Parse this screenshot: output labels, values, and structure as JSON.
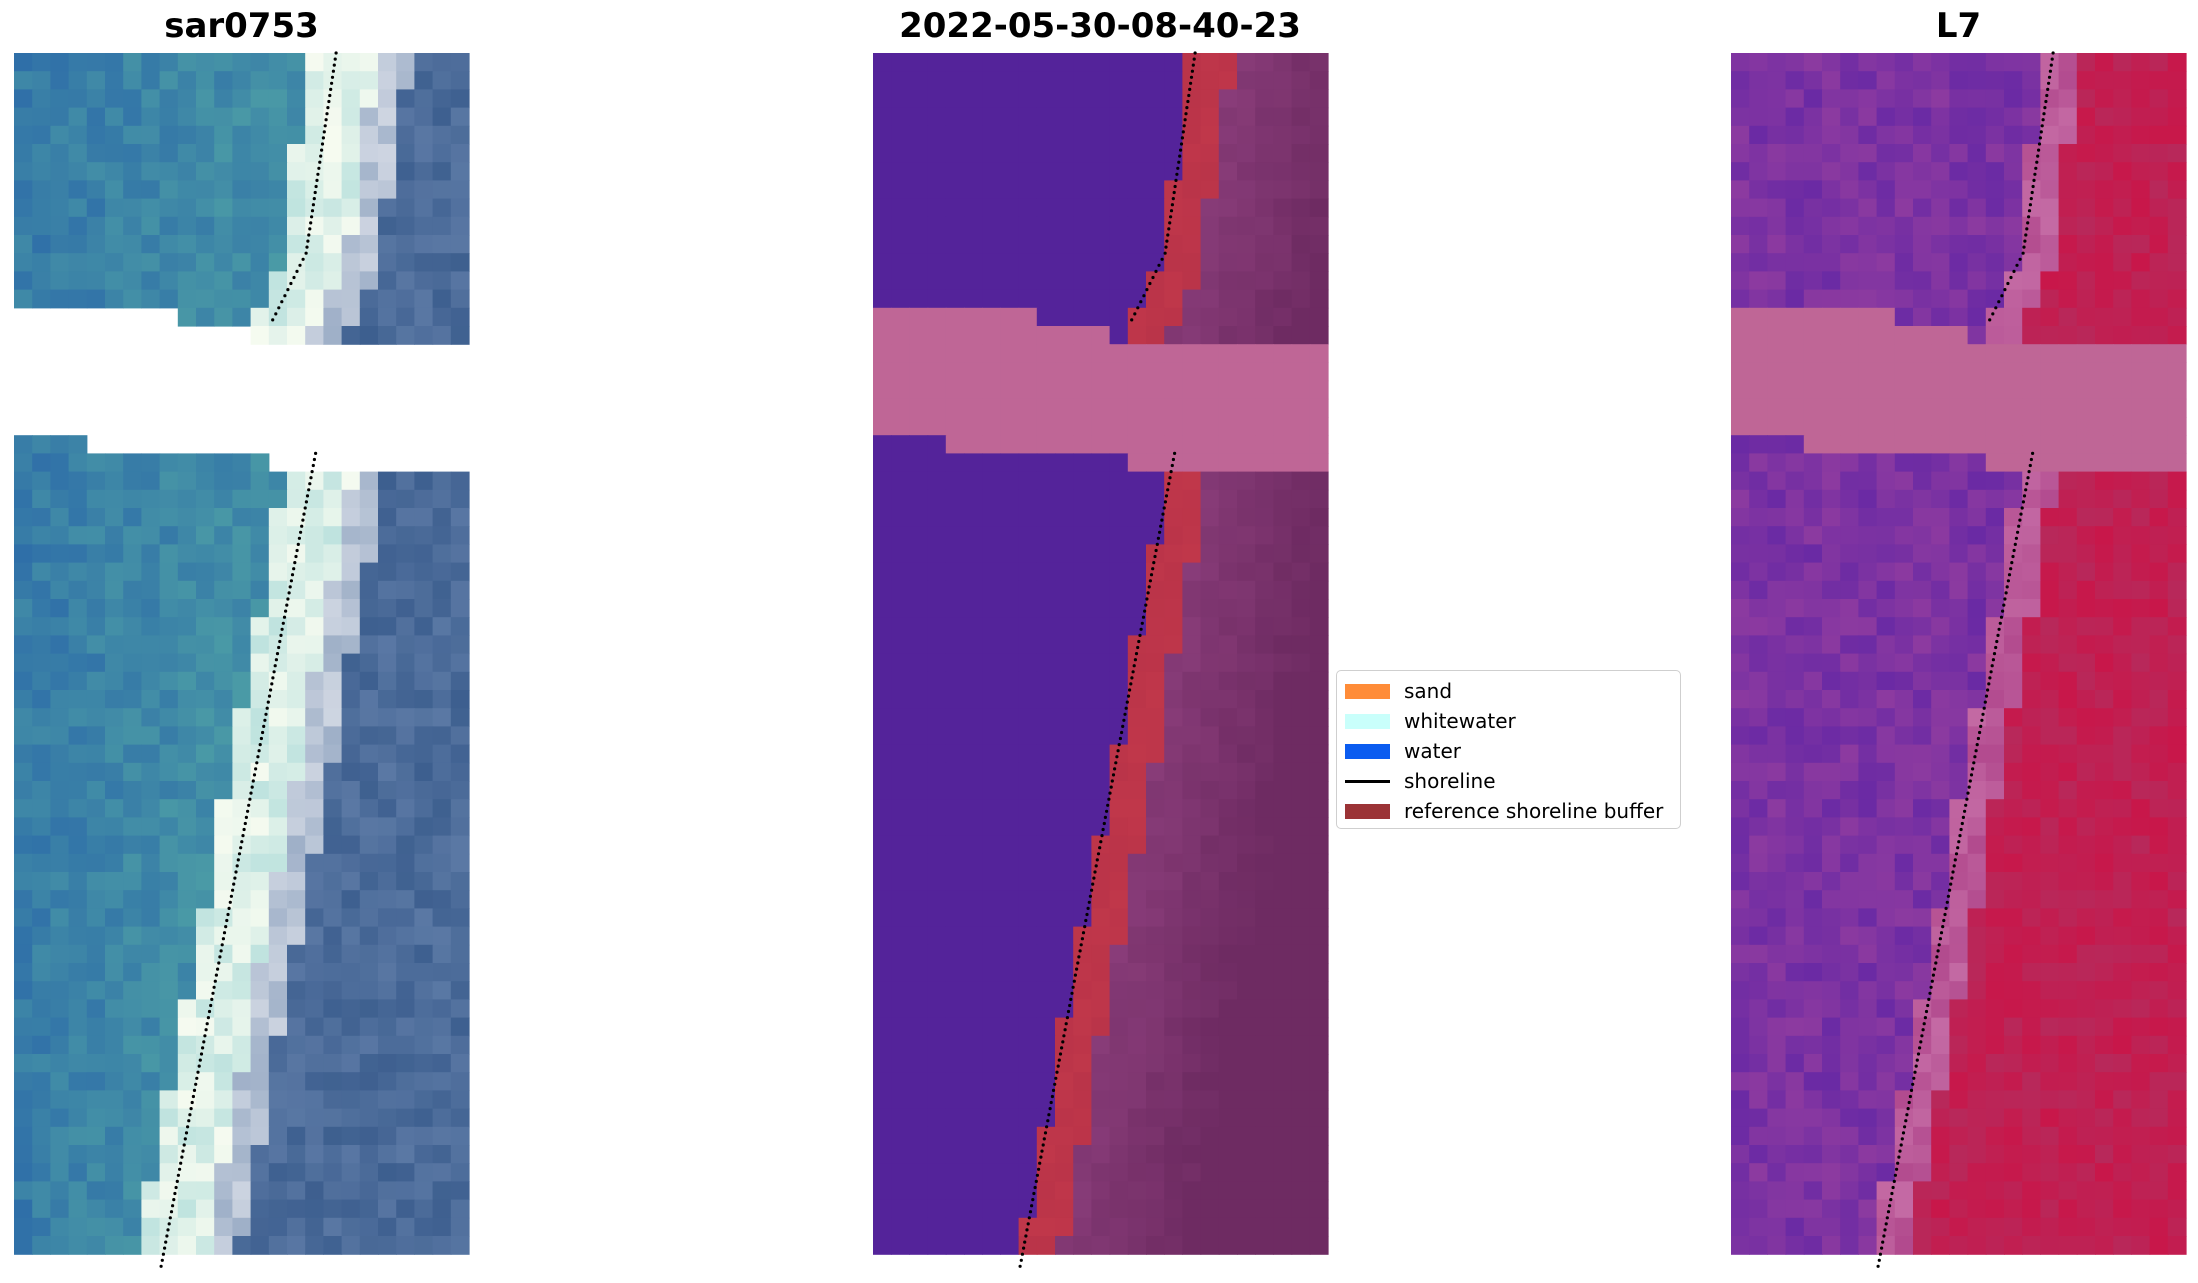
{
  "panels": [
    {
      "title": "sar0753",
      "rendering": "true-color RGB satellite image"
    },
    {
      "title": "2022-05-30-08-40-23",
      "rendering": "classified image with shoreline buffer"
    },
    {
      "title": "L7",
      "rendering": "spectral index image"
    }
  ],
  "legend": {
    "items": [
      {
        "label": "sand",
        "type": "patch",
        "color": "#ff8c38"
      },
      {
        "label": "whitewater",
        "type": "patch",
        "color": "#c9fffb"
      },
      {
        "label": "water",
        "type": "patch",
        "color": "#0b5cf0"
      },
      {
        "label": "shoreline",
        "type": "line",
        "color": "#000000"
      },
      {
        "label": "reference shoreline buffer",
        "type": "patch",
        "color": "#9b3336"
      }
    ]
  },
  "colors": {
    "nodata_mask": "#bf6696",
    "land_class": "#54239a",
    "buffer": "#c0374a",
    "water_rgb": "#3472a8",
    "surf_rgb": "#e8f4ef",
    "index_low": "#7a2a9c",
    "index_high": "#c8174a"
  }
}
